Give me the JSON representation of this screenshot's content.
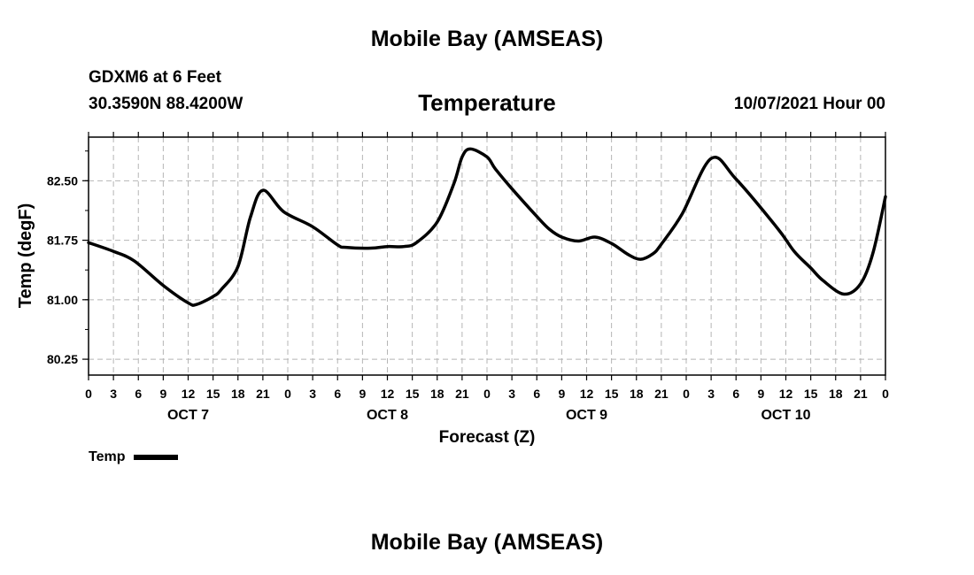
{
  "header": {
    "top_title": "Mobile Bay (AMSEAS)",
    "station": "GDXM6 at 6 Feet",
    "coords": "30.3590N  88.4200W",
    "run_time": "10/07/2021 Hour 00",
    "bottom_title": "Mobile Bay (AMSEAS)"
  },
  "legend": {
    "label": "Temp"
  },
  "chart_data": {
    "type": "line",
    "title": "Temperature",
    "xlabel": "Forecast (Z)",
    "ylabel": "Temp (degF)",
    "xlim": [
      0,
      96
    ],
    "ylim": [
      80.05,
      83.05
    ],
    "yticks": [
      80.25,
      81.0,
      81.75,
      82.5
    ],
    "ytick_labels": [
      "80.25",
      "81.00",
      "81.75",
      "82.50"
    ],
    "xtick_labels": [
      "0",
      "3",
      "6",
      "9",
      "12",
      "15",
      "18",
      "21",
      "0",
      "3",
      "6",
      "9",
      "12",
      "15",
      "18",
      "21",
      "0",
      "3",
      "6",
      "9",
      "12",
      "15",
      "18",
      "21",
      "0",
      "3",
      "6",
      "9",
      "12",
      "15",
      "18",
      "21",
      "0"
    ],
    "day_labels": [
      {
        "x": 12,
        "label": "OCT 7"
      },
      {
        "x": 36,
        "label": "OCT 8"
      },
      {
        "x": 60,
        "label": "OCT 9"
      },
      {
        "x": 84,
        "label": "OCT 10"
      }
    ],
    "grid": true,
    "legend_position": "bottom-left",
    "line_color": "#000000",
    "series": [
      {
        "name": "Temp",
        "x": [
          0,
          3,
          5.5,
          9,
          12,
          13,
          15,
          16,
          18,
          19.5,
          21,
          23.5,
          27,
          30,
          31,
          34,
          36,
          38,
          39.5,
          42,
          44,
          45,
          46,
          48,
          49,
          51,
          54,
          55.5,
          57,
          59,
          61,
          63,
          65,
          66.5,
          68,
          69,
          71.5,
          75,
          78,
          83,
          85,
          87,
          88.5,
          91,
          93,
          94.5,
          96
        ],
        "y": [
          81.72,
          81.61,
          81.49,
          81.18,
          80.96,
          80.94,
          81.04,
          81.13,
          81.42,
          82.04,
          82.38,
          82.11,
          81.92,
          81.69,
          81.66,
          81.65,
          81.67,
          81.67,
          81.72,
          81.98,
          82.46,
          82.8,
          82.9,
          82.8,
          82.65,
          82.4,
          82.05,
          81.89,
          81.79,
          81.74,
          81.79,
          81.71,
          81.57,
          81.51,
          81.58,
          81.7,
          82.08,
          82.78,
          82.52,
          81.9,
          81.61,
          81.4,
          81.24,
          81.07,
          81.2,
          81.59,
          82.3
        ]
      }
    ]
  }
}
